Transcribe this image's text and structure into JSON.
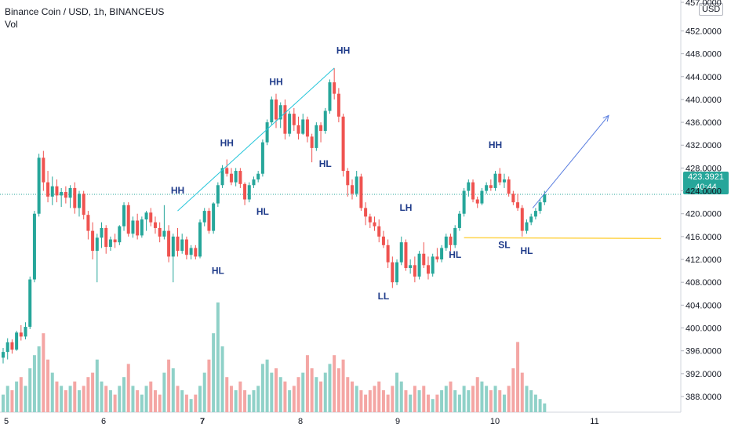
{
  "header": {
    "title": "Binance Coin / USD, 1h, BINANCEUS",
    "volume_label": "Vol"
  },
  "currency": "USD",
  "last_price": {
    "value": "423.3921",
    "countdown": "40:44"
  },
  "colors": {
    "up": "#26a69a",
    "down": "#ef5350",
    "vol_up": "#8fd1c8",
    "vol_down": "#f4a6a4",
    "trendline": "#26c6da",
    "arrow": "#5b7fe0",
    "support": "#ffd54f",
    "annotation": "#1f3b8a"
  },
  "chart_data": {
    "type": "candlestick",
    "symbol": "Binance Coin / USD",
    "timeframe": "1h",
    "exchange": "BINANCEUS",
    "ylim": [
      384,
      457
    ],
    "y_ticks": [
      "388.0000",
      "392.0000",
      "396.0000",
      "400.0000",
      "404.0000",
      "408.0000",
      "412.0000",
      "416.0000",
      "420.0000",
      "424.0000",
      "428.0000",
      "432.0000",
      "436.0000",
      "440.0000",
      "444.0000",
      "448.0000",
      "452.0000",
      "457.0000"
    ],
    "x_ticks": [
      "5",
      "6",
      "7",
      "8",
      "9",
      "10",
      "11"
    ],
    "candles": [
      [
        394.8,
        396.5,
        393.8,
        395.8
      ],
      [
        395.8,
        398.2,
        394.5,
        397.5
      ],
      [
        397.5,
        398.0,
        395.5,
        396.2
      ],
      [
        396.2,
        399.5,
        396.0,
        399.2
      ],
      [
        399.2,
        400.5,
        397.8,
        398.5
      ],
      [
        398.5,
        401.0,
        398.0,
        400.2
      ],
      [
        400.2,
        409.0,
        399.8,
        408.5
      ],
      [
        408.5,
        420.5,
        408.0,
        420.0
      ],
      [
        420.0,
        430.5,
        419.5,
        429.8
      ],
      [
        429.8,
        431.0,
        424.0,
        425.5
      ],
      [
        425.5,
        427.5,
        422.0,
        423.0
      ],
      [
        423.0,
        426.5,
        421.5,
        424.8
      ],
      [
        424.8,
        426.0,
        422.0,
        423.2
      ],
      [
        423.2,
        424.5,
        421.2,
        423.8
      ],
      [
        423.8,
        424.8,
        421.8,
        422.8
      ],
      [
        422.8,
        425.0,
        421.0,
        424.5
      ],
      [
        424.5,
        425.5,
        420.0,
        421.0
      ],
      [
        421.0,
        424.0,
        419.5,
        423.5
      ],
      [
        423.5,
        424.0,
        419.0,
        419.8
      ],
      [
        419.8,
        420.5,
        415.5,
        417.0
      ],
      [
        417.0,
        418.5,
        412.0,
        413.5
      ],
      [
        413.5,
        416.5,
        408.0,
        415.8
      ],
      [
        415.8,
        418.5,
        414.0,
        417.5
      ],
      [
        417.5,
        418.0,
        413.0,
        414.2
      ],
      [
        414.2,
        416.0,
        413.5,
        415.5
      ],
      [
        415.5,
        416.5,
        414.0,
        415.0
      ],
      [
        415.0,
        418.0,
        414.5,
        417.8
      ],
      [
        417.8,
        422.0,
        417.0,
        421.5
      ],
      [
        421.5,
        422.0,
        416.0,
        416.5
      ],
      [
        416.5,
        419.5,
        415.8,
        418.8
      ],
      [
        418.8,
        420.0,
        415.5,
        416.2
      ],
      [
        416.2,
        419.5,
        415.8,
        419.0
      ],
      [
        419.0,
        420.5,
        417.0,
        420.2
      ],
      [
        420.2,
        421.0,
        417.8,
        418.5
      ],
      [
        418.5,
        419.5,
        416.5,
        417.5
      ],
      [
        417.5,
        418.5,
        415.0,
        416.0
      ],
      [
        416.0,
        421.5,
        415.5,
        417.0
      ],
      [
        417.0,
        418.0,
        411.5,
        412.5
      ],
      [
        412.5,
        416.5,
        408.0,
        416.0
      ],
      [
        416.0,
        417.5,
        412.5,
        413.5
      ],
      [
        413.5,
        416.5,
        413.0,
        415.5
      ],
      [
        415.5,
        416.0,
        412.0,
        412.8
      ],
      [
        412.8,
        414.5,
        412.0,
        414.0
      ],
      [
        414.0,
        414.5,
        412.0,
        412.5
      ],
      [
        412.5,
        419.0,
        412.2,
        418.5
      ],
      [
        418.5,
        421.0,
        417.8,
        420.5
      ],
      [
        420.5,
        421.0,
        416.5,
        417.0
      ],
      [
        417.0,
        422.0,
        416.5,
        421.8
      ],
      [
        421.8,
        425.5,
        421.2,
        425.0
      ],
      [
        425.0,
        428.5,
        424.5,
        428.0
      ],
      [
        428.0,
        429.5,
        426.5,
        427.0
      ],
      [
        427.0,
        428.0,
        425.0,
        425.5
      ],
      [
        425.5,
        428.0,
        424.8,
        427.5
      ],
      [
        427.5,
        428.0,
        424.5,
        425.2
      ],
      [
        425.2,
        425.5,
        421.5,
        422.5
      ],
      [
        422.5,
        425.5,
        422.0,
        425.0
      ],
      [
        425.0,
        426.5,
        424.5,
        426.0
      ],
      [
        426.0,
        427.5,
        425.5,
        427.0
      ],
      [
        427.0,
        433.0,
        426.5,
        432.5
      ],
      [
        432.5,
        436.5,
        432.0,
        436.0
      ],
      [
        436.0,
        440.5,
        435.5,
        440.0
      ],
      [
        440.0,
        441.0,
        435.0,
        436.5
      ],
      [
        436.5,
        439.5,
        435.0,
        439.0
      ],
      [
        439.0,
        440.0,
        433.0,
        434.0
      ],
      [
        434.0,
        438.0,
        433.5,
        437.5
      ],
      [
        437.5,
        438.5,
        434.5,
        435.5
      ],
      [
        435.5,
        437.0,
        433.0,
        434.0
      ],
      [
        434.0,
        437.5,
        433.8,
        436.5
      ],
      [
        436.5,
        437.0,
        432.5,
        433.5
      ],
      [
        433.5,
        434.0,
        429.0,
        431.5
      ],
      [
        431.5,
        436.0,
        431.0,
        435.5
      ],
      [
        435.5,
        436.0,
        432.5,
        434.5
      ],
      [
        434.5,
        438.5,
        434.0,
        438.0
      ],
      [
        438.0,
        443.5,
        437.5,
        443.0
      ],
      [
        443.0,
        445.5,
        440.0,
        441.0
      ],
      [
        441.0,
        442.0,
        436.0,
        437.0
      ],
      [
        437.0,
        437.5,
        426.5,
        427.5
      ],
      [
        427.5,
        428.0,
        423.0,
        425.0
      ],
      [
        425.0,
        426.0,
        422.5,
        423.5
      ],
      [
        423.5,
        427.5,
        423.0,
        426.5
      ],
      [
        426.5,
        427.0,
        420.5,
        421.0
      ],
      [
        421.0,
        422.0,
        418.0,
        419.5
      ],
      [
        419.5,
        420.0,
        417.5,
        418.5
      ],
      [
        418.5,
        419.5,
        417.0,
        417.8
      ],
      [
        417.8,
        419.0,
        415.0,
        416.0
      ],
      [
        416.0,
        417.0,
        414.0,
        414.5
      ],
      [
        414.5,
        415.5,
        410.5,
        411.5
      ],
      [
        411.5,
        412.5,
        407.0,
        408.0
      ],
      [
        408.0,
        412.0,
        407.5,
        411.5
      ],
      [
        411.5,
        416.0,
        411.0,
        415.0
      ],
      [
        415.0,
        415.5,
        410.0,
        410.5
      ],
      [
        410.5,
        412.0,
        409.5,
        411.0
      ],
      [
        411.0,
        412.5,
        408.0,
        409.0
      ],
      [
        409.0,
        413.5,
        408.5,
        413.0
      ],
      [
        413.0,
        415.0,
        410.5,
        411.0
      ],
      [
        411.0,
        412.5,
        408.5,
        409.5
      ],
      [
        409.5,
        413.0,
        409.0,
        412.5
      ],
      [
        412.5,
        414.0,
        411.5,
        412.0
      ],
      [
        412.0,
        414.5,
        411.5,
        414.0
      ],
      [
        414.0,
        416.5,
        413.5,
        416.0
      ],
      [
        416.0,
        416.5,
        413.5,
        414.5
      ],
      [
        414.5,
        418.0,
        414.0,
        417.5
      ],
      [
        417.5,
        420.5,
        417.0,
        420.0
      ],
      [
        420.0,
        424.5,
        419.5,
        424.0
      ],
      [
        424.0,
        426.0,
        423.0,
        425.5
      ],
      [
        425.5,
        426.0,
        422.0,
        422.5
      ],
      [
        422.5,
        423.0,
        421.0,
        421.8
      ],
      [
        421.8,
        424.5,
        421.5,
        424.0
      ],
      [
        424.0,
        425.5,
        423.5,
        425.0
      ],
      [
        425.0,
        426.0,
        424.0,
        424.5
      ],
      [
        424.5,
        427.5,
        424.0,
        427.0
      ],
      [
        427.0,
        428.0,
        425.0,
        425.5
      ],
      [
        425.5,
        427.0,
        424.5,
        426.0
      ],
      [
        426.0,
        426.5,
        423.0,
        423.5
      ],
      [
        423.5,
        424.0,
        421.5,
        422.0
      ],
      [
        422.0,
        423.5,
        420.5,
        421.0
      ],
      [
        421.0,
        421.5,
        416.0,
        417.0
      ],
      [
        417.0,
        419.0,
        416.5,
        418.5
      ],
      [
        418.5,
        420.0,
        418.0,
        419.5
      ],
      [
        419.5,
        421.0,
        419.0,
        420.5
      ],
      [
        420.5,
        422.5,
        420.0,
        422.0
      ],
      [
        422.0,
        424.0,
        421.5,
        423.4
      ]
    ],
    "volume": [
      4,
      6,
      5,
      7,
      8,
      6,
      10,
      13,
      15,
      18,
      12,
      9,
      7,
      6,
      5,
      6,
      7,
      5,
      6,
      8,
      9,
      12,
      7,
      6,
      5,
      4,
      6,
      8,
      11,
      6,
      5,
      4,
      6,
      7,
      5,
      4,
      9,
      12,
      10,
      6,
      5,
      4,
      3,
      4,
      6,
      9,
      12,
      18,
      25,
      15,
      8,
      6,
      5,
      7,
      5,
      4,
      5,
      6,
      11,
      12,
      9,
      10,
      8,
      7,
      5,
      6,
      8,
      9,
      13,
      10,
      8,
      7,
      9,
      11,
      13,
      10,
      12,
      8,
      7,
      6,
      5,
      4,
      5,
      6,
      7,
      5,
      4,
      6,
      9,
      7,
      5,
      4,
      6,
      5,
      6,
      4,
      3,
      4,
      5,
      6,
      7,
      5,
      4,
      6,
      5,
      6,
      8,
      7,
      6,
      5,
      6,
      5,
      4,
      6,
      10,
      16,
      9,
      6,
      5,
      4,
      3,
      2
    ],
    "annotations": [
      {
        "text": "HH",
        "price": 423.5
      },
      {
        "text": "HL",
        "price": 409.5
      },
      {
        "text": "HH",
        "price": 431.8
      },
      {
        "text": "HL",
        "price": 419.8
      },
      {
        "text": "HH",
        "price": 442.5
      },
      {
        "text": "HL",
        "price": 428.2
      },
      {
        "text": "HH",
        "price": 448.0
      },
      {
        "text": "LL",
        "price": 405.0
      },
      {
        "text": "LH",
        "price": 420.5
      },
      {
        "text": "HL",
        "price": 412.3
      },
      {
        "text": "HH",
        "price": 431.5
      },
      {
        "text": "SL",
        "price": 414.0
      },
      {
        "text": "HL",
        "price": 413.0
      }
    ],
    "support_price": 415.8
  }
}
